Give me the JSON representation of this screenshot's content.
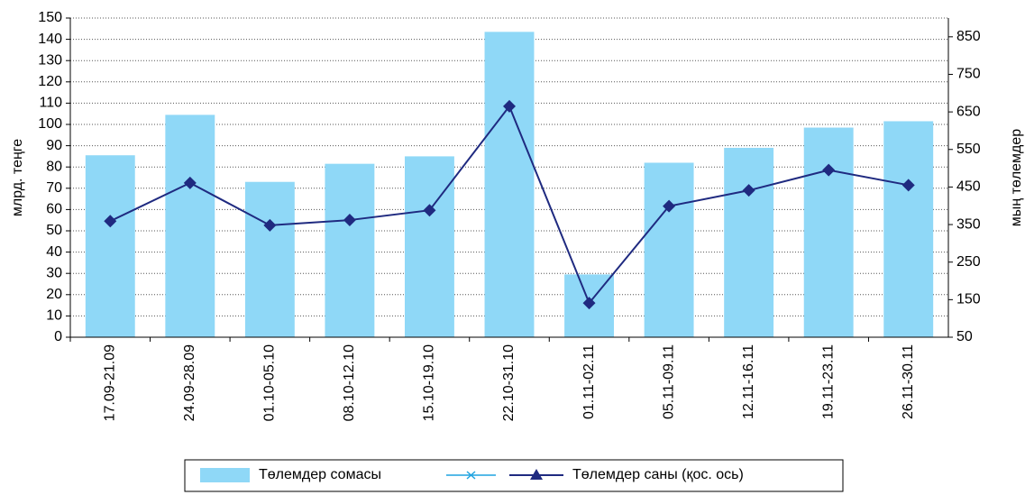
{
  "chart_data": {
    "type": "bar_line",
    "y_label": "млрд. теңге",
    "y2_label": "мың төлемдер",
    "categories": [
      "17.09-21.09",
      "24.09-28.09",
      "01.10-05.10",
      "08.10-12.10",
      "15.10-19.10",
      "22.10-31.10",
      "01.11-02.11",
      "05.11-09.11",
      "12.11-16.11",
      "19.11-23.11",
      "26.11-30.11"
    ],
    "series": [
      {
        "name": "Төлемдер сомасы",
        "type": "bar",
        "color": "#8fd8f7",
        "values": [
          85.5,
          104.5,
          73,
          81.5,
          85,
          143.5,
          29.5,
          82,
          89,
          98.5,
          101.5
        ]
      },
      {
        "name": "Төлемдер саны (қос. ось)",
        "type": "line",
        "axis": "y2",
        "color": "#1f2a80",
        "values": [
          359,
          461,
          348,
          362,
          388,
          665,
          141,
          399,
          441,
          495,
          455
        ]
      }
    ],
    "ylim": [
      0,
      150
    ],
    "yticks": [
      0,
      10,
      20,
      30,
      40,
      50,
      60,
      70,
      80,
      90,
      100,
      110,
      120,
      130,
      140,
      150
    ],
    "y2lim": [
      50,
      900
    ],
    "y2ticks": [
      50,
      150,
      250,
      350,
      450,
      550,
      650,
      750,
      850
    ],
    "grid": true,
    "legend": "bottom"
  }
}
